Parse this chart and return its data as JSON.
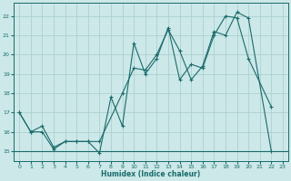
{
  "title": "",
  "xlabel": "Humidex (Indice chaleur)",
  "xlim": [
    -0.5,
    23.5
  ],
  "ylim": [
    14.5,
    22.7
  ],
  "yticks": [
    15,
    16,
    17,
    18,
    19,
    20,
    21,
    22
  ],
  "xticks": [
    0,
    1,
    2,
    3,
    4,
    5,
    6,
    7,
    8,
    9,
    10,
    11,
    12,
    13,
    14,
    15,
    16,
    17,
    18,
    19,
    20,
    21,
    22,
    23
  ],
  "bg_color": "#cce8e8",
  "line_color": "#1a6b6b",
  "grid_color": "#a8cccc",
  "line_flat": {
    "x": [
      -0.5,
      23.5
    ],
    "y": [
      15,
      15
    ]
  },
  "line_smooth": {
    "x": [
      0,
      1,
      2,
      3,
      4,
      5,
      6,
      7,
      9,
      10,
      11,
      12,
      13,
      14,
      15,
      16,
      17,
      18,
      19,
      20,
      22
    ],
    "y": [
      17,
      16,
      16.3,
      15.2,
      15.5,
      15.5,
      15.5,
      15.5,
      18.0,
      19.3,
      19.2,
      20.0,
      21.3,
      20.2,
      18.7,
      19.4,
      21.2,
      21.0,
      22.2,
      21.9,
      15.0
    ]
  },
  "line_zigzag": {
    "x": [
      0,
      1,
      2,
      3,
      4,
      5,
      6,
      7,
      8,
      9,
      10,
      11,
      12,
      13,
      14,
      15,
      16,
      17,
      18,
      19,
      20,
      22
    ],
    "y": [
      17,
      16,
      16.0,
      15.1,
      15.5,
      15.5,
      15.5,
      14.9,
      17.8,
      16.3,
      20.6,
      19.0,
      19.8,
      21.4,
      18.7,
      19.5,
      19.3,
      21.0,
      22.0,
      21.9,
      19.8,
      17.3
    ]
  }
}
